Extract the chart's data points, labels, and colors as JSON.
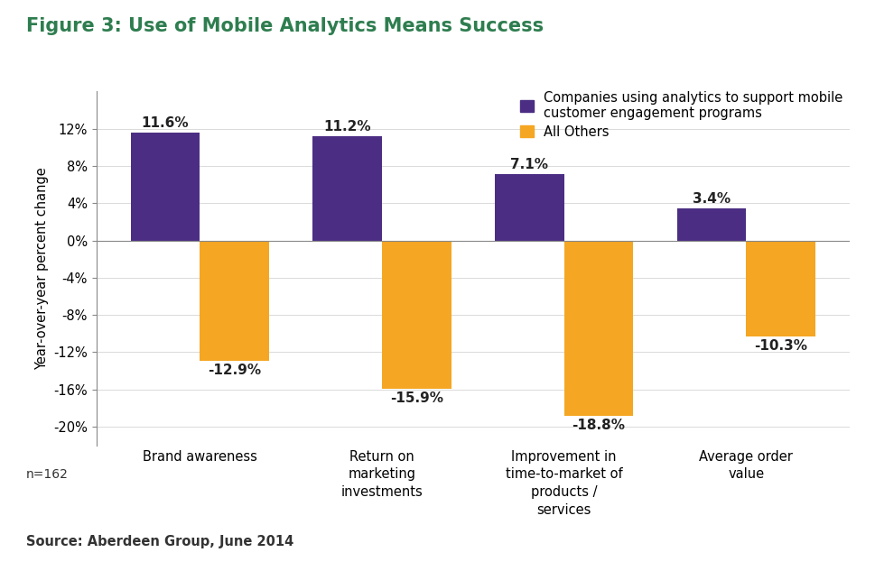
{
  "title": "Figure 3: Use of Mobile Analytics Means Success",
  "title_color": "#2E7D4F",
  "categories": [
    "Brand awareness",
    "Return on\nmarketing\ninvestments",
    "Improvement in\ntime-to-market of\nproducts /\nservices",
    "Average order\nvalue"
  ],
  "analytics_values": [
    11.6,
    11.2,
    7.1,
    3.4
  ],
  "others_values": [
    -12.9,
    -15.9,
    -18.8,
    -10.3
  ],
  "analytics_color": "#4B2E83",
  "others_color": "#F5A623",
  "ylabel": "Year-over-year percent change",
  "ylim": [
    -22,
    16
  ],
  "yticks": [
    -20,
    -16,
    -12,
    -8,
    -4,
    0,
    4,
    8,
    12
  ],
  "legend_analytics": "Companies using analytics to support mobile\ncustomer engagement programs",
  "legend_others": "All Others",
  "source_text": "Source: Aberdeen Group, June 2014",
  "n_text": "n=162",
  "bar_width": 0.38,
  "background_color": "#FFFFFF",
  "title_fontsize": 15,
  "label_fontsize": 10.5,
  "tick_fontsize": 10.5,
  "legend_fontsize": 10.5,
  "ylabel_fontsize": 10.5,
  "annotation_fontsize": 11
}
